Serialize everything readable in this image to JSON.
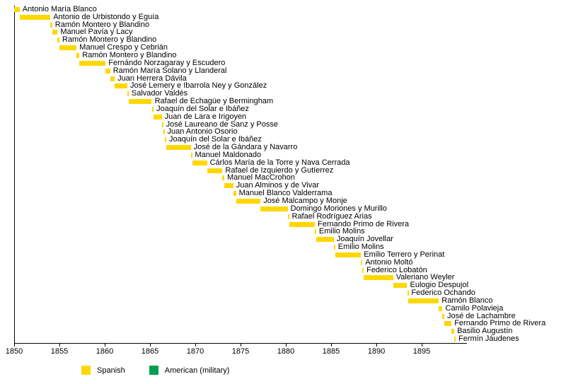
{
  "chart_data": {
    "type": "bar",
    "variant": "horizontal-timeline-gantt",
    "title": "",
    "xlabel": "",
    "ylabel": "",
    "grid": false,
    "x_axis": {
      "min": 1850,
      "max": 1900,
      "ticks": [
        1850,
        1855,
        1860,
        1865,
        1870,
        1875,
        1880,
        1885,
        1890,
        1895
      ]
    },
    "legend": [
      {
        "label": "Spanish",
        "color": "#FFD700"
      },
      {
        "label": "American (military)",
        "color": "#00A050"
      }
    ],
    "legend_position": "bottom",
    "bars": [
      {
        "name": "Antonio María Blanco",
        "start": 1850.0,
        "end": 1850.6,
        "group": "Spanish"
      },
      {
        "name": "Antonio de Urbistondo y Eguía",
        "start": 1850.6,
        "end": 1854.0,
        "group": "Spanish"
      },
      {
        "name": "Ramón Montero y Blandino",
        "start": 1854.0,
        "end": 1854.2,
        "group": "Spanish"
      },
      {
        "name": "Manuel Pavía y Lacy",
        "start": 1854.2,
        "end": 1854.8,
        "group": "Spanish"
      },
      {
        "name": "Ramón Montero y Blandino",
        "start": 1854.8,
        "end": 1855.0,
        "group": "Spanish"
      },
      {
        "name": "Manuel Crespo y Cebrián",
        "start": 1855.0,
        "end": 1856.9,
        "group": "Spanish"
      },
      {
        "name": "Ramón Montero y Blandino",
        "start": 1856.9,
        "end": 1857.2,
        "group": "Spanish"
      },
      {
        "name": "Fernándo Norzagaray y Escudero",
        "start": 1857.2,
        "end": 1860.1,
        "group": "Spanish"
      },
      {
        "name": "Ramón María Solano y Llanderal",
        "start": 1860.1,
        "end": 1860.6,
        "group": "Spanish"
      },
      {
        "name": "Juan Herrera Dávila",
        "start": 1860.6,
        "end": 1861.1,
        "group": "Spanish"
      },
      {
        "name": "José Lemery e Ibarrola Ney y González",
        "start": 1861.1,
        "end": 1862.5,
        "group": "Spanish"
      },
      {
        "name": "Salvador Valdés",
        "start": 1862.5,
        "end": 1862.65,
        "group": "Spanish"
      },
      {
        "name": "Rafael de Echagüe y Bermingham",
        "start": 1862.65,
        "end": 1865.2,
        "group": "Spanish"
      },
      {
        "name": "Joaquín del Solar e Ibáñez",
        "start": 1865.2,
        "end": 1865.4,
        "group": "Spanish"
      },
      {
        "name": "Juan de Lara e Irigoyen",
        "start": 1865.4,
        "end": 1866.3,
        "group": "Spanish"
      },
      {
        "name": "José Laureano de Sanz y Posse",
        "start": 1866.3,
        "end": 1866.45,
        "group": "Spanish"
      },
      {
        "name": "Juan Antonio Osorio",
        "start": 1866.45,
        "end": 1866.6,
        "group": "Spanish"
      },
      {
        "name": "Joaquín del Solar e Ibáñez",
        "start": 1866.6,
        "end": 1866.8,
        "group": "Spanish"
      },
      {
        "name": "José de la Gándara y Navarro",
        "start": 1866.8,
        "end": 1869.5,
        "group": "Spanish"
      },
      {
        "name": "Manuel Maldonado",
        "start": 1869.5,
        "end": 1869.65,
        "group": "Spanish"
      },
      {
        "name": "Cárlos María de la Torre y Nava Cerrada",
        "start": 1869.65,
        "end": 1871.3,
        "group": "Spanish"
      },
      {
        "name": "Rafael de Izquierdo y Gutíerrez",
        "start": 1871.3,
        "end": 1873.0,
        "group": "Spanish"
      },
      {
        "name": "Manuel MacCrohon",
        "start": 1873.0,
        "end": 1873.2,
        "group": "Spanish"
      },
      {
        "name": "Juan Alminos y de Vivar",
        "start": 1873.2,
        "end": 1874.2,
        "group": "Spanish"
      },
      {
        "name": "Manuel Blanco Valderrama",
        "start": 1874.2,
        "end": 1874.5,
        "group": "Spanish"
      },
      {
        "name": "José Malcampo y Monje",
        "start": 1874.5,
        "end": 1877.2,
        "group": "Spanish"
      },
      {
        "name": "Domingo Moriones y Murillo",
        "start": 1877.2,
        "end": 1880.2,
        "group": "Spanish"
      },
      {
        "name": "Rafael Rodríguez Arias",
        "start": 1880.2,
        "end": 1880.35,
        "group": "Spanish"
      },
      {
        "name": "Fernando Primo de Rivera",
        "start": 1880.35,
        "end": 1883.2,
        "group": "Spanish"
      },
      {
        "name": "Emilio Molins",
        "start": 1883.2,
        "end": 1883.35,
        "group": "Spanish"
      },
      {
        "name": "Joaquín Jovellar",
        "start": 1883.35,
        "end": 1885.3,
        "group": "Spanish"
      },
      {
        "name": "Emilio Molins",
        "start": 1885.3,
        "end": 1885.45,
        "group": "Spanish"
      },
      {
        "name": "Emilio Terrero y Perinat",
        "start": 1885.45,
        "end": 1888.3,
        "group": "Spanish"
      },
      {
        "name": "Antonio Moltó",
        "start": 1888.3,
        "end": 1888.45,
        "group": "Spanish"
      },
      {
        "name": "Federico Lobatón",
        "start": 1888.45,
        "end": 1888.6,
        "group": "Spanish"
      },
      {
        "name": "Valeriano Weyler",
        "start": 1888.6,
        "end": 1891.85,
        "group": "Spanish"
      },
      {
        "name": "Eulogio Despujol",
        "start": 1891.85,
        "end": 1893.4,
        "group": "Spanish"
      },
      {
        "name": "Federico Ochando",
        "start": 1893.4,
        "end": 1893.55,
        "group": "Spanish"
      },
      {
        "name": "Ramón Blanco",
        "start": 1893.55,
        "end": 1896.9,
        "group": "Spanish"
      },
      {
        "name": "Camilo Polavieja",
        "start": 1896.9,
        "end": 1897.3,
        "group": "Spanish"
      },
      {
        "name": "José de Lachambre",
        "start": 1897.3,
        "end": 1897.5,
        "group": "Spanish"
      },
      {
        "name": "Fernando Primo de Rivera",
        "start": 1897.5,
        "end": 1898.3,
        "group": "Spanish"
      },
      {
        "name": "Basilio Augustín",
        "start": 1898.3,
        "end": 1898.6,
        "group": "Spanish"
      },
      {
        "name": "Fermín Jáudenes",
        "start": 1898.6,
        "end": 1898.75,
        "group": "Spanish"
      }
    ]
  },
  "colors": {
    "background": "#ffffff",
    "axis": "#000000",
    "text": "#000000"
  }
}
